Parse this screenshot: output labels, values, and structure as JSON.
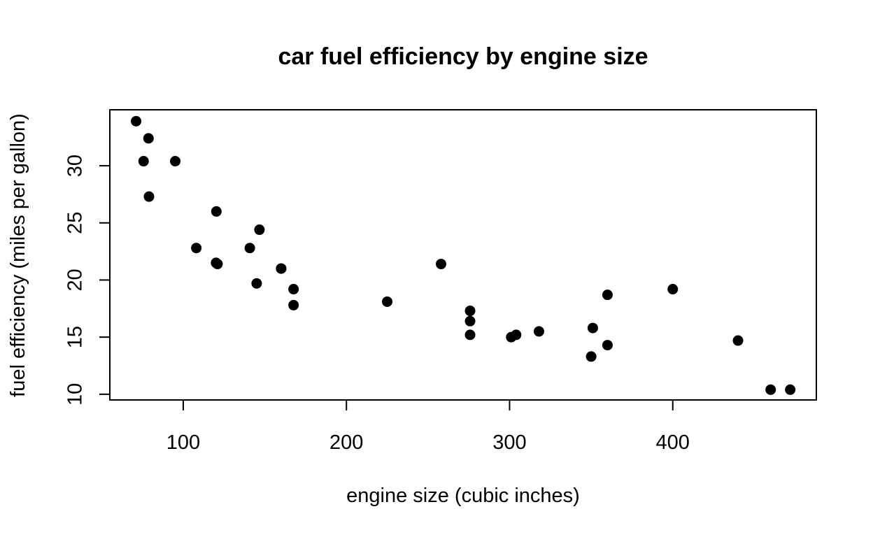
{
  "chart_data": {
    "type": "scatter",
    "title": "car fuel efficiency by engine size",
    "xlabel": "engine size (cubic inches)",
    "ylabel": "fuel efficiency (miles per gallon)",
    "xlim": [
      55,
      488
    ],
    "ylim": [
      9.5,
      34.9
    ],
    "x_ticks": [
      100,
      200,
      300,
      400
    ],
    "y_ticks": [
      10,
      15,
      20,
      25,
      30
    ],
    "x_tick_labels": [
      "100",
      "200",
      "300",
      "400"
    ],
    "y_tick_labels": [
      "10",
      "15",
      "20",
      "25",
      "30"
    ],
    "grid": false,
    "legend": "none",
    "point_color": "#000000",
    "points": [
      {
        "x": 160,
        "y": 21.0
      },
      {
        "x": 160,
        "y": 21.0
      },
      {
        "x": 108,
        "y": 22.8
      },
      {
        "x": 258,
        "y": 21.4
      },
      {
        "x": 360,
        "y": 18.7
      },
      {
        "x": 225,
        "y": 18.1
      },
      {
        "x": 360,
        "y": 14.3
      },
      {
        "x": 146.7,
        "y": 24.4
      },
      {
        "x": 140.8,
        "y": 22.8
      },
      {
        "x": 167.6,
        "y": 19.2
      },
      {
        "x": 167.6,
        "y": 17.8
      },
      {
        "x": 275.8,
        "y": 16.4
      },
      {
        "x": 275.8,
        "y": 17.3
      },
      {
        "x": 275.8,
        "y": 15.2
      },
      {
        "x": 472,
        "y": 10.4
      },
      {
        "x": 460,
        "y": 10.4
      },
      {
        "x": 440,
        "y": 14.7
      },
      {
        "x": 78.7,
        "y": 32.4
      },
      {
        "x": 75.7,
        "y": 30.4
      },
      {
        "x": 71.1,
        "y": 33.9
      },
      {
        "x": 120.1,
        "y": 21.5
      },
      {
        "x": 318,
        "y": 15.5
      },
      {
        "x": 304,
        "y": 15.2
      },
      {
        "x": 350,
        "y": 13.3
      },
      {
        "x": 400,
        "y": 19.2
      },
      {
        "x": 79,
        "y": 27.3
      },
      {
        "x": 120.3,
        "y": 26.0
      },
      {
        "x": 95.1,
        "y": 30.4
      },
      {
        "x": 351,
        "y": 15.8
      },
      {
        "x": 145,
        "y": 19.7
      },
      {
        "x": 301,
        "y": 15.0
      },
      {
        "x": 121,
        "y": 21.4
      }
    ]
  }
}
